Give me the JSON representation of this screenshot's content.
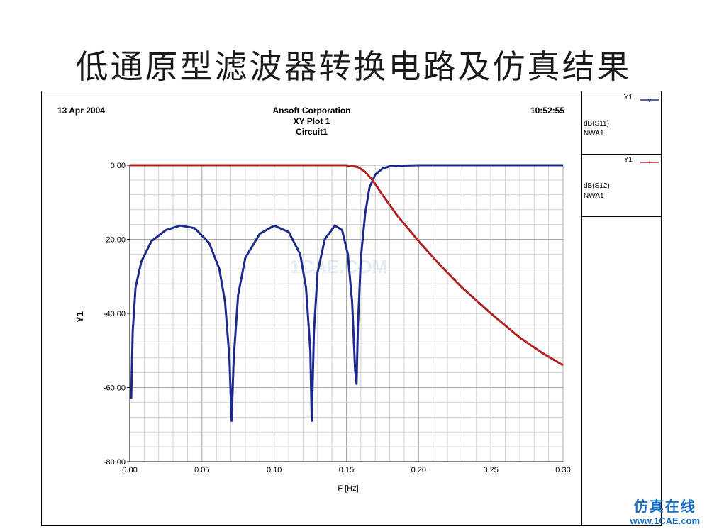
{
  "slide": {
    "title": "低通原型滤波器转换电路及仿真结果"
  },
  "header": {
    "date": "13 Apr 2004",
    "company": "Ansoft Corporation",
    "plot_name": "XY Plot 1",
    "circuit": "Circuit1",
    "time": "10:52:55"
  },
  "legend": [
    {
      "axis": "Y1",
      "trace": "dB(S11)",
      "source": "NWA1",
      "color": "#1c2a8c",
      "marker": "o"
    },
    {
      "axis": "Y1",
      "trace": "dB(S12)",
      "source": "NWA1",
      "color": "#b02020",
      "marker": "+"
    }
  ],
  "watermark": {
    "top": "仿真在线",
    "bottom": "www.1CAE.com",
    "mid": "1CAE.COM"
  },
  "chart_data": {
    "type": "line",
    "xlabel": "F [Hz]",
    "ylabel": "Y1",
    "xlim": [
      0,
      0.3
    ],
    "ylim": [
      -80,
      0
    ],
    "x_ticks": [
      0.0,
      0.05,
      0.1,
      0.15,
      0.2,
      0.25,
      0.3
    ],
    "x_tick_labels": [
      "0.00",
      "0.05",
      "0.10",
      "0.15",
      "0.20",
      "0.25",
      "0.30"
    ],
    "y_ticks": [
      0,
      -20,
      -40,
      -60,
      -80
    ],
    "y_tick_labels": [
      "0.00",
      "-20.00",
      "-40.00",
      "-60.00",
      "-80.00"
    ],
    "grid": true,
    "series": [
      {
        "name": "dB(S11)",
        "color": "#1c2a8c",
        "x": [
          0.001,
          0.002,
          0.004,
          0.008,
          0.015,
          0.025,
          0.035,
          0.045,
          0.055,
          0.062,
          0.066,
          0.069,
          0.0705,
          0.072,
          0.075,
          0.08,
          0.09,
          0.1,
          0.11,
          0.118,
          0.122,
          0.125,
          0.126,
          0.1275,
          0.13,
          0.135,
          0.142,
          0.147,
          0.151,
          0.154,
          0.156,
          0.157,
          0.158,
          0.16,
          0.163,
          0.166,
          0.17,
          0.175,
          0.18,
          0.19,
          0.2,
          0.22,
          0.25,
          0.3
        ],
        "y": [
          -63,
          -45,
          -33,
          -26,
          -20.5,
          -17.5,
          -16.3,
          -17,
          -21,
          -28,
          -37,
          -52,
          -69,
          -52,
          -35,
          -25,
          -18.5,
          -16.3,
          -18,
          -24,
          -33,
          -50,
          -69,
          -45,
          -29,
          -20,
          -16.3,
          -17.5,
          -24,
          -37,
          -55,
          -59,
          -43,
          -25,
          -13,
          -6,
          -2.5,
          -0.9,
          -0.3,
          -0.1,
          0,
          0,
          0,
          0
        ]
      },
      {
        "name": "dB(S12)",
        "color": "#b02020",
        "x": [
          0.0,
          0.05,
          0.1,
          0.15,
          0.158,
          0.163,
          0.168,
          0.175,
          0.185,
          0.2,
          0.215,
          0.23,
          0.25,
          0.27,
          0.285,
          0.3
        ],
        "y": [
          0,
          0,
          0,
          0,
          -0.5,
          -1.8,
          -4,
          -8,
          -13.5,
          -20.5,
          -27,
          -33,
          -40,
          -46.5,
          -50.5,
          -54
        ]
      }
    ]
  }
}
